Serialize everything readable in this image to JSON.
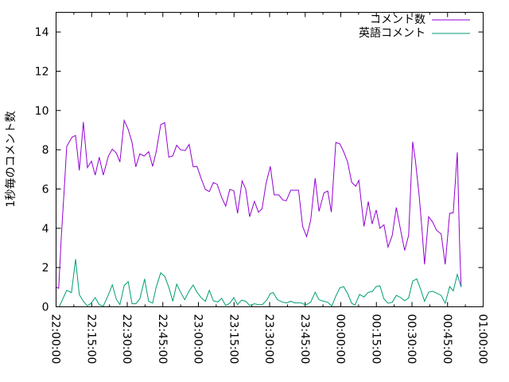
{
  "chart_data": {
    "type": "line",
    "title": "",
    "xlabel": "",
    "ylabel": "1秒毎のコメント数",
    "ylim": [
      0,
      15
    ],
    "xlim_minutes_from_start": [
      0,
      180
    ],
    "yticks": [
      0,
      2,
      4,
      6,
      8,
      10,
      12,
      14
    ],
    "xtick_labels": [
      "22:00:00",
      "22:15:00",
      "22:30:00",
      "22:45:00",
      "23:00:00",
      "23:15:00",
      "23:30:00",
      "23:45:00",
      "00:00:00",
      "00:15:00",
      "00:30:00",
      "00:45:00",
      "01:00:00"
    ],
    "xtick_step_minutes": 15,
    "legend_position": "top-right",
    "series": [
      {
        "name": "コメント数",
        "color": "#9400d3",
        "x": [
          0,
          1.1,
          2.2,
          3.6,
          4.5,
          6.7,
          8.2,
          9.8,
          11.5,
          13.2,
          14.9,
          16.5,
          18.2,
          19.9,
          22.1,
          23.7,
          25.4,
          26.9,
          28.7,
          30.4,
          32,
          33.6,
          35.3,
          37.1,
          39,
          40.7,
          42.2,
          44.1,
          45.8,
          47.5,
          49.2,
          50.8,
          52.5,
          54.4,
          56.1,
          57.8,
          59.4,
          61.1,
          62.9,
          64.6,
          66.3,
          67.9,
          69.8,
          71.5,
          73.2,
          74.9,
          76.5,
          78.4,
          79.9,
          81.6,
          83.6,
          85.3,
          86.8,
          88.5,
          90.3,
          91.9,
          93.9,
          95.5,
          97,
          98.9,
          102.2,
          103.9,
          105.6,
          107.3,
          109.2,
          110.8,
          112.9,
          114.5,
          116,
          117.9,
          119.6,
          121.2,
          122.9,
          124.6,
          126.3,
          127.6,
          129.8,
          131.6,
          133.2,
          134.9,
          136.5,
          138.2,
          139.9,
          141.7,
          143.4,
          145.3,
          146.9,
          148.6,
          150.3,
          151.4,
          153.1,
          154.2,
          155.3,
          157,
          158.7,
          160.3,
          162.3,
          164,
          165.9,
          167.4,
          169.1,
          170.1,
          170.7
        ],
        "values": [
          1.0,
          0.94,
          3.57,
          6.28,
          8.17,
          8.64,
          8.73,
          6.95,
          9.41,
          7.09,
          7.42,
          6.71,
          7.62,
          6.71,
          7.69,
          8.03,
          7.83,
          7.38,
          9.49,
          9.04,
          8.37,
          7.13,
          7.79,
          7.68,
          7.9,
          7.15,
          7.9,
          9.27,
          9.38,
          7.62,
          7.69,
          8.23,
          8.0,
          7.96,
          8.27,
          7.13,
          7.15,
          6.55,
          5.98,
          5.87,
          6.33,
          6.24,
          5.57,
          5.13,
          5.98,
          5.91,
          4.76,
          6.41,
          6.01,
          4.59,
          5.37,
          4.82,
          4.99,
          6.28,
          7.15,
          5.7,
          5.7,
          5.45,
          5.4,
          5.94,
          5.94,
          4.1,
          3.57,
          4.4,
          6.55,
          4.86,
          5.8,
          5.9,
          4.82,
          8.37,
          8.3,
          7.9,
          7.36,
          6.34,
          6.14,
          6.44,
          4.09,
          5.36,
          4.22,
          4.93,
          4.0,
          4.18,
          3.04,
          3.64,
          5.06,
          3.85,
          2.87,
          3.64,
          8.41,
          7.49,
          5.6,
          3.98,
          2.16,
          4.59,
          4.32,
          3.91,
          3.71,
          2.16,
          4.76,
          4.79,
          7.87,
          3.04,
          1.01
        ]
      },
      {
        "name": "英語コメント",
        "color": "#009e73",
        "x": [
          1.3,
          4.5,
          6.5,
          8.2,
          9.8,
          11.5,
          13.2,
          14.9,
          16.5,
          18.2,
          19.9,
          22.1,
          23.7,
          25.4,
          26.9,
          28.7,
          30.4,
          32,
          33.6,
          35.3,
          37.3,
          39,
          40.7,
          42.2,
          44.1,
          45.8,
          47.5,
          49.2,
          50.8,
          52.5,
          54.2,
          56.1,
          57.8,
          59.4,
          61.1,
          62.9,
          64.6,
          66.3,
          68.2,
          69.8,
          71.5,
          73.2,
          74.9,
          76.5,
          78.2,
          79.9,
          81.6,
          83.6,
          85.3,
          86.9,
          88.8,
          90.3,
          91.5,
          93.3,
          95.5,
          97.2,
          98.9,
          100.6,
          103.4,
          105.2,
          107.3,
          109.2,
          110.8,
          112.9,
          114.5,
          116.2,
          117.9,
          119.6,
          121.2,
          122.9,
          124.6,
          126,
          127.9,
          129.8,
          131.6,
          133.2,
          134.9,
          136.5,
          138.2,
          139.9,
          141.7,
          143.4,
          145.3,
          146.9,
          148.6,
          150.3,
          152,
          153.7,
          155.3,
          157,
          158.7,
          160.3,
          162.3,
          164,
          165.9,
          167.4,
          169.1,
          170.7
        ],
        "values": [
          0,
          0.84,
          0.72,
          2.43,
          0.62,
          0.28,
          0.05,
          0.2,
          0.47,
          0.1,
          0.04,
          0.62,
          1.12,
          0.38,
          0.11,
          1.08,
          1.28,
          0.16,
          0.16,
          0.4,
          1.42,
          0.28,
          0.19,
          1.0,
          1.73,
          1.55,
          1.0,
          0.28,
          1.15,
          0.74,
          0.36,
          0.81,
          1.11,
          0.74,
          0.47,
          0.28,
          0.84,
          0.3,
          0.25,
          0.43,
          0.07,
          0.18,
          0.47,
          0.11,
          0.34,
          0.28,
          0.07,
          0.16,
          0.11,
          0.11,
          0.34,
          0.67,
          0.73,
          0.36,
          0.23,
          0.2,
          0.28,
          0.2,
          0.2,
          0.09,
          0.23,
          0.74,
          0.36,
          0.28,
          0.23,
          0.04,
          0.54,
          0.97,
          1.03,
          0.67,
          0.18,
          0.09,
          0.63,
          0.5,
          0.74,
          0.77,
          1.03,
          1.07,
          0.4,
          0.18,
          0.23,
          0.58,
          0.47,
          0.31,
          0.45,
          1.31,
          1.42,
          0.88,
          0.28,
          0.74,
          0.79,
          0.7,
          0.58,
          0.18,
          1.03,
          0.81,
          1.65,
          1.01
        ]
      }
    ]
  }
}
